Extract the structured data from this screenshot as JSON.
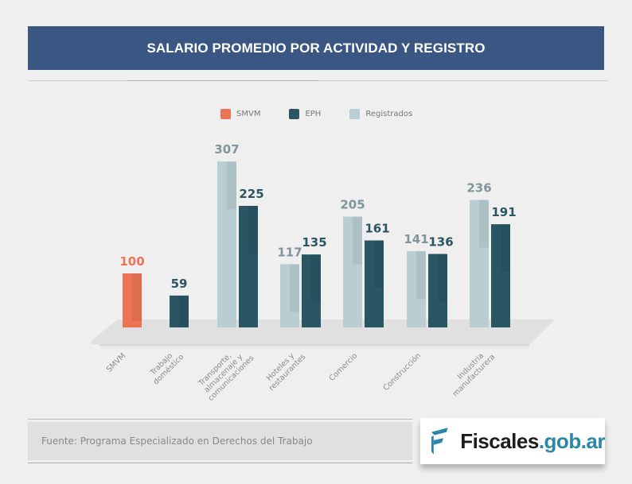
{
  "header": {
    "title": "SALARIO PROMEDIO POR ACTIVIDAD Y REGISTRO"
  },
  "colors": {
    "smvm": "#ec7454",
    "eph": "#2a5563",
    "registrados": "#b8ced2",
    "title_bg": "#3a5683",
    "logo_accent": "#2c86a8"
  },
  "legend": [
    {
      "label": "SMVM",
      "color": "#ec7454"
    },
    {
      "label": "EPH",
      "color": "#2a5563"
    },
    {
      "label": "Registrados",
      "color": "#b8ced2"
    }
  ],
  "chart_data": {
    "type": "bar",
    "title": "SALARIO PROMEDIO POR ACTIVIDAD Y REGISTRO",
    "xlabel": "",
    "ylabel": "",
    "ylim": [
      0,
      320
    ],
    "grid": false,
    "legend_position": "top-center",
    "categories": [
      "SMVM",
      "Trabajo doméstico",
      "Transporte, almacenaje y comunicaciones",
      "Hoteles y restaurantes",
      "Comercio",
      "Construcción",
      "Industria manufacturera"
    ],
    "category_label_lines": [
      [
        "SMVM"
      ],
      [
        "Trabajo",
        "doméstico"
      ],
      [
        "Transporte,",
        "almacenaje y",
        "comunicaciones"
      ],
      [
        "Hoteles y",
        "restaurantes"
      ],
      [
        "Comercio"
      ],
      [
        "Construcción"
      ],
      [
        "Industria",
        "manufacturera"
      ]
    ],
    "series": [
      {
        "name": "SMVM",
        "values": [
          100,
          null,
          null,
          null,
          null,
          null,
          null
        ]
      },
      {
        "name": "Registrados",
        "values": [
          null,
          null,
          307,
          117,
          205,
          141,
          236
        ]
      },
      {
        "name": "EPH",
        "values": [
          null,
          59,
          225,
          135,
          161,
          136,
          191
        ]
      }
    ]
  },
  "footer": {
    "source": "Fuente: Programa Especializado en Derechos del Trabajo"
  },
  "logo": {
    "part1": "Fiscales",
    "part2": ".gob.ar"
  }
}
